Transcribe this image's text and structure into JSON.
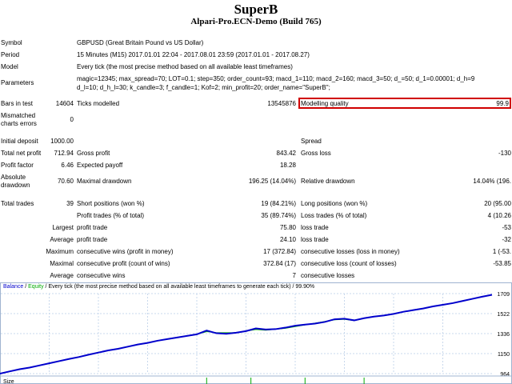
{
  "header": {
    "title": "SuperB",
    "subtitle": "Alpari-Pro.ECN-Demo (Build 765)"
  },
  "info": {
    "symbol_label": "Symbol",
    "symbol_value": "GBPUSD (Great Britain Pound vs US Dollar)",
    "period_label": "Period",
    "period_value": "15 Minutes (M15) 2017.01.01 22:04 - 2017.08.01 23:59 (2017.01.01 - 2017.08.27)",
    "model_label": "Model",
    "model_value": "Every tick (the most precise method based on all available least timeframes)",
    "parameters_label": "Parameters",
    "parameters_line1": "magic=12345; max_spread=70; LOT=0.1; step=350; order_count=93; macd_1=110; macd_2=160; macd_3=50; d_=50; d_1=0.00001; d_h=9",
    "parameters_line2": "d_l=10; d_h_l=30; k_candle=3; f_candle=1; Kof=2; min_profit=20; order_name=\"SuperB\";"
  },
  "stats": {
    "bars_label": "Bars in test",
    "bars_value": "14604",
    "ticks_label": "Ticks modelled",
    "ticks_value": "13545876",
    "quality_label": "Modelling quality",
    "quality_value": "99.9",
    "mismatched_label_1": "Mismatched",
    "mismatched_label_2": "charts errors",
    "mismatched_value": "0",
    "initial_label": "Initial deposit",
    "initial_value": "1000.00",
    "spread_label": "Spread",
    "net_label": "Total net profit",
    "net_value": "712.94",
    "gross_profit_label": "Gross profit",
    "gross_profit_value": "843.42",
    "gross_loss_label": "Gross loss",
    "gross_loss_value": "-130",
    "pf_label": "Profit factor",
    "pf_value": "6.46",
    "payoff_label": "Expected payoff",
    "payoff_value": "18.28",
    "abs_dd_label_1": "Absolute",
    "abs_dd_label_2": "drawdown",
    "abs_dd_value": "70.60",
    "max_dd_label": "Maximal drawdown",
    "max_dd_value": "196.25 (14.04%)",
    "rel_dd_label": "Relative drawdown",
    "rel_dd_value": "14.04% (196.",
    "trades_label": "Total trades",
    "trades_value": "39",
    "short_label": "Short positions (won %)",
    "short_value": "19 (84.21%)",
    "long_label": "Long positions (won %)",
    "long_value": "20 (95.00",
    "ptrades_label": "Profit trades (% of total)",
    "ptrades_value": "35 (89.74%)",
    "ltrades_label": "Loss trades (% of total)",
    "ltrades_value": "4 (10.26",
    "largest_label": "Largest",
    "profit_trade_label": "profit trade",
    "largest_profit": "75.80",
    "loss_trade_label": "loss trade",
    "largest_loss": "-53",
    "average_label": "Average",
    "avg_profit": "24.10",
    "avg_loss": "-32",
    "maximum_label": "Maximum",
    "max_cw_label": "consecutive wins (profit in money)",
    "max_cw_value": "17 (372.84)",
    "max_cl_label": "consecutive losses (loss in money)",
    "max_cl_value": "1 (-53.",
    "maximal_label": "Maximal",
    "maximal_cp_label": "consecutive profit (count of wins)",
    "maximal_cp_value": "372.84 (17)",
    "maximal_cl_label": "consecutive loss (count of losses)",
    "maximal_cl_value": "-53.85",
    "avg_cw_label": "consecutive wins",
    "avg_cw_value": "7",
    "avg_cl_label": "consecutive losses"
  },
  "chart_data": {
    "type": "line",
    "legend": {
      "balance": "Balance",
      "sep": " / ",
      "equity": "Equity",
      "rest": " / Every tick (the most precise method based on all available least timeframes to generate each tick) / 99.90%"
    },
    "y_ticks": [
      "1709",
      "1522",
      "1336",
      "1150",
      "964"
    ],
    "x_label": "Size",
    "ylim": [
      964,
      1709
    ],
    "colors": {
      "balance": "#0000cc",
      "equity": "#00aa00",
      "grid": "#c8d8ec"
    },
    "balance": [
      [
        0,
        964
      ],
      [
        2,
        985
      ],
      [
        4,
        1005
      ],
      [
        6,
        1020
      ],
      [
        8,
        1040
      ],
      [
        10,
        1060
      ],
      [
        12,
        1080
      ],
      [
        14,
        1100
      ],
      [
        16,
        1118
      ],
      [
        18,
        1140
      ],
      [
        20,
        1160
      ],
      [
        22,
        1180
      ],
      [
        24,
        1195
      ],
      [
        26,
        1215
      ],
      [
        28,
        1235
      ],
      [
        30,
        1250
      ],
      [
        32,
        1270
      ],
      [
        34,
        1285
      ],
      [
        36,
        1300
      ],
      [
        38,
        1315
      ],
      [
        40,
        1330
      ],
      [
        42,
        1365
      ],
      [
        44,
        1340
      ],
      [
        46,
        1335
      ],
      [
        48,
        1345
      ],
      [
        50,
        1360
      ],
      [
        52,
        1385
      ],
      [
        54,
        1375
      ],
      [
        56,
        1378
      ],
      [
        58,
        1392
      ],
      [
        60,
        1410
      ],
      [
        62,
        1420
      ],
      [
        64,
        1430
      ],
      [
        66,
        1445
      ],
      [
        68,
        1470
      ],
      [
        70,
        1475
      ],
      [
        72,
        1460
      ],
      [
        74,
        1480
      ],
      [
        76,
        1495
      ],
      [
        78,
        1505
      ],
      [
        80,
        1520
      ],
      [
        82,
        1540
      ],
      [
        84,
        1555
      ],
      [
        86,
        1570
      ],
      [
        88,
        1590
      ],
      [
        90,
        1605
      ],
      [
        92,
        1620
      ],
      [
        94,
        1640
      ],
      [
        96,
        1660
      ],
      [
        98,
        1680
      ],
      [
        100,
        1698
      ]
    ],
    "equity": [
      [
        40,
        1330
      ],
      [
        42,
        1355
      ],
      [
        44,
        1345
      ],
      [
        48,
        1345
      ],
      [
        52,
        1375
      ],
      [
        54,
        1368
      ],
      [
        58,
        1386
      ],
      [
        68,
        1465
      ],
      [
        70,
        1470
      ],
      [
        72,
        1458
      ],
      [
        74,
        1478
      ]
    ],
    "x_markers": [
      42,
      51,
      62,
      74
    ]
  }
}
